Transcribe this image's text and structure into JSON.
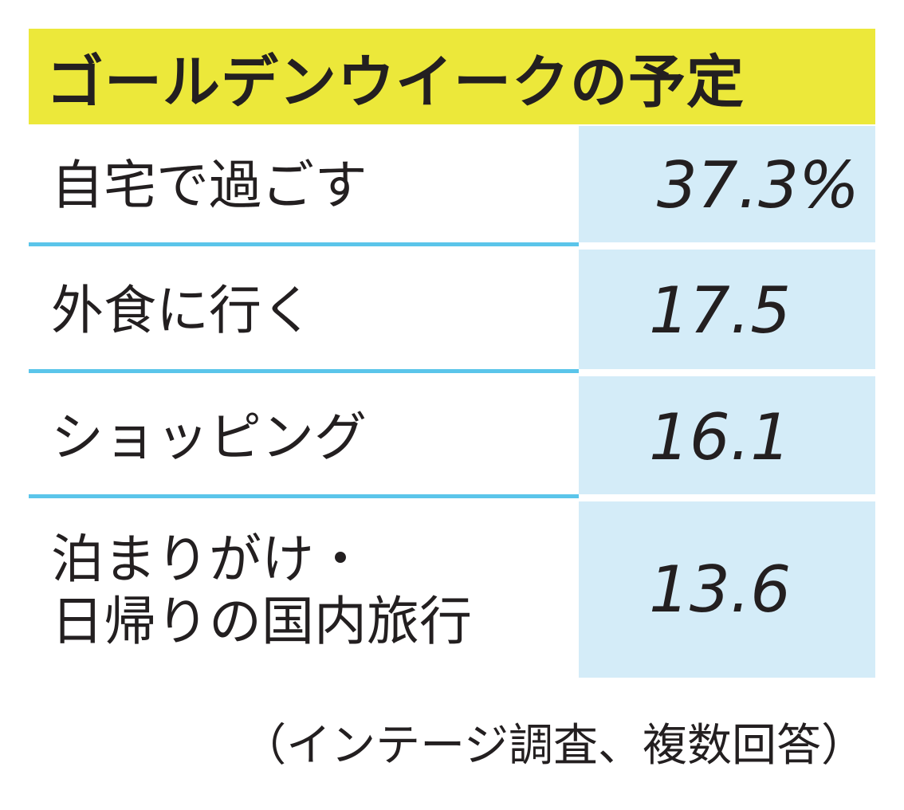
{
  "chart_data": {
    "type": "table",
    "title": "ゴールデンウイークの予定",
    "rows": [
      {
        "label": "自宅で過ごす",
        "value": "37.3%"
      },
      {
        "label": "外食に行く",
        "value": "17.5"
      },
      {
        "label": "ショッピング",
        "value": "16.1"
      },
      {
        "label": "泊まりがけ・日帰りの国内旅行",
        "label_lines": [
          "泊まりがけ・",
          "日帰りの国内旅行"
        ],
        "value": "13.6"
      }
    ],
    "values_numeric": [
      37.3,
      17.5,
      16.1,
      13.6
    ],
    "unit": "%",
    "note": "（インテージ調査、複数回答）"
  },
  "colors": {
    "title_background": "#ece83a",
    "value_background": "#d4ecf8",
    "divider": "#5bc5ea",
    "text": "#231f20"
  }
}
